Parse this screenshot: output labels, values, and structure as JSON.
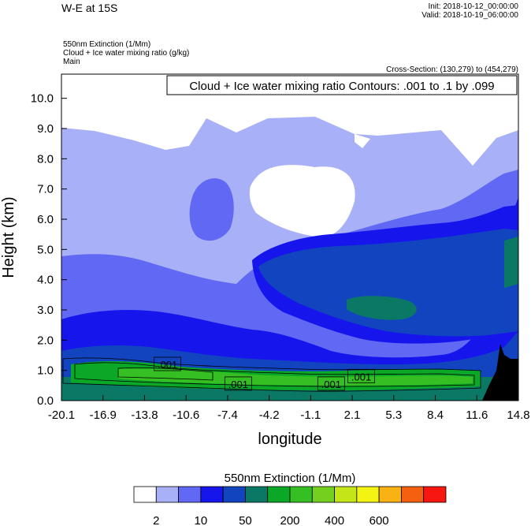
{
  "header": {
    "title": "W-E at 15S",
    "init": "Init: 2018-10-12_00:00:00",
    "valid": "Valid: 2018-10-19_06:00:00",
    "field1": "550nm Extinction   (1/Mm)",
    "field2": "Cloud + Ice water mixing ratio   (g/kg)",
    "field3": "Main",
    "cross_section": "Cross-Section: (130,279) to (454,279)"
  },
  "colors": {
    "levels": [
      "#ffffff",
      "#a8b0f8",
      "#6068f4",
      "#1616ec",
      "#1244c0",
      "#0b7866",
      "#0aa826",
      "#36bf22",
      "#74d01e",
      "#c4e618",
      "#f4f414",
      "#f8b214",
      "#f46010",
      "#f81610"
    ],
    "terrain": "#000000"
  },
  "chart_data": {
    "type": "heatmap",
    "title": "Cloud + Ice water mixing ratio Contours: .001 to .1 by .099",
    "xlabel": "longitude",
    "ylabel": "Height (km)",
    "xlim": [
      -20.1,
      14.8
    ],
    "ylim": [
      0,
      10.8
    ],
    "x_ticks": [
      "-20.1",
      "-16.9",
      "-13.8",
      "-10.6",
      "-7.4",
      "-4.2",
      "-1.1",
      "2.1",
      "5.3",
      "8.4",
      "11.6",
      "14.8"
    ],
    "y_ticks": [
      "0.0",
      "1.0",
      "2.0",
      "3.0",
      "4.0",
      "5.0",
      "6.0",
      "7.0",
      "8.0",
      "9.0",
      "10.0"
    ],
    "contour_labels": [
      {
        "text": ".001",
        "lon": -12.0,
        "height": 1.2
      },
      {
        "text": ".001",
        "lon": -6.6,
        "height": 0.55
      },
      {
        "text": ".001",
        "lon": 0.5,
        "height": 0.55
      },
      {
        "text": ".001",
        "lon": 2.8,
        "height": 0.8
      }
    ],
    "colorbar": {
      "title": "550nm Extinction  (1/Mm)",
      "labels": [
        "2",
        "10",
        "50",
        "200",
        "400",
        "600"
      ]
    }
  }
}
